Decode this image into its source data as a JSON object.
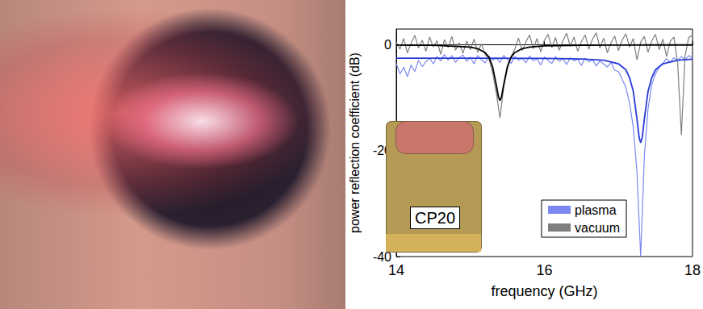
{
  "chart_data": {
    "type": "line",
    "xlabel": "frequency (GHz)",
    "ylabel": "power reflection coefficient (dB)",
    "xlim": [
      14,
      18
    ],
    "xticks": [
      14,
      16,
      18
    ],
    "ylim": [
      -40,
      3
    ],
    "yticks": [
      -40,
      -20,
      0
    ],
    "grid": false,
    "legend": "lower right",
    "annotations": [
      {
        "text": "CP20"
      }
    ],
    "series": [
      {
        "name": "plasma",
        "color": "#7b88f2",
        "marker": "none",
        "line_style": "solid",
        "x": [
          14.0,
          14.05,
          14.1,
          14.15,
          14.2,
          14.25,
          14.3,
          14.35,
          14.4,
          14.45,
          14.5,
          14.55,
          14.6,
          14.65,
          14.7,
          14.75,
          14.8,
          14.85,
          14.9,
          14.95,
          15.0,
          15.05,
          15.1,
          15.15,
          15.2,
          15.25,
          15.3,
          15.35,
          15.4,
          15.45,
          15.5,
          15.55,
          15.6,
          15.65,
          15.7,
          15.75,
          15.8,
          15.85,
          15.9,
          15.95,
          16.0,
          16.05,
          16.1,
          16.15,
          16.2,
          16.25,
          16.3,
          16.35,
          16.4,
          16.45,
          16.5,
          16.55,
          16.6,
          16.65,
          16.7,
          16.75,
          16.8,
          16.85,
          16.9,
          16.95,
          17.0,
          17.05,
          17.1,
          17.15,
          17.2,
          17.25,
          17.3,
          17.35,
          17.4,
          17.45,
          17.5,
          17.55,
          17.6,
          17.65,
          17.7,
          17.75,
          17.8,
          17.85,
          17.9,
          17.95,
          18.0
        ],
        "values": [
          -3.5,
          -5.5,
          -4.2,
          -6.0,
          -3.8,
          -5.0,
          -2.9,
          -4.1,
          -3.2,
          -2.5,
          -3.6,
          -2.2,
          -3.0,
          -1.8,
          -2.9,
          -2.0,
          -3.3,
          -2.4,
          -1.9,
          -3.1,
          -2.3,
          -3.6,
          -2.0,
          -2.8,
          -3.4,
          -2.1,
          -2.9,
          -2.4,
          -3.3,
          -2.0,
          -2.7,
          -3.5,
          -2.2,
          -2.9,
          -2.5,
          -3.4,
          -2.1,
          -3.0,
          -2.6,
          -3.8,
          -2.3,
          -2.9,
          -3.5,
          -2.2,
          -3.1,
          -2.6,
          -3.7,
          -2.4,
          -3.0,
          -2.7,
          -3.9,
          -2.5,
          -3.2,
          -2.8,
          -4.0,
          -3.0,
          -3.6,
          -4.2,
          -3.3,
          -4.8,
          -5.0,
          -6.5,
          -8.0,
          -11.0,
          -15.5,
          -24.0,
          -40.0,
          -21.0,
          -12.0,
          -7.5,
          -5.5,
          -4.2,
          -3.5,
          -2.6,
          -3.3,
          -2.4,
          -3.0,
          -2.2,
          -2.8,
          -2.0,
          -2.5
        ]
      },
      {
        "name": "vacuum",
        "color": "#7f7f7f",
        "marker": "none",
        "line_style": "solid",
        "x": [
          14.0,
          14.05,
          14.1,
          14.15,
          14.2,
          14.25,
          14.3,
          14.35,
          14.4,
          14.45,
          14.5,
          14.55,
          14.6,
          14.65,
          14.7,
          14.75,
          14.8,
          14.85,
          14.9,
          14.95,
          15.0,
          15.05,
          15.1,
          15.15,
          15.2,
          15.25,
          15.3,
          15.35,
          15.4,
          15.45,
          15.5,
          15.55,
          15.6,
          15.65,
          15.7,
          15.75,
          15.8,
          15.85,
          15.9,
          15.95,
          16.0,
          16.05,
          16.1,
          16.15,
          16.2,
          16.25,
          16.3,
          16.35,
          16.4,
          16.45,
          16.5,
          16.55,
          16.6,
          16.65,
          16.7,
          16.75,
          16.8,
          16.85,
          16.9,
          16.95,
          17.0,
          17.05,
          17.1,
          17.15,
          17.2,
          17.25,
          17.3,
          17.35,
          17.4,
          17.45,
          17.5,
          17.55,
          17.6,
          17.65,
          17.7,
          17.75,
          17.8,
          17.85,
          17.9,
          17.95,
          18.0
        ],
        "values": [
          0.5,
          -0.8,
          1.2,
          -1.5,
          0.3,
          1.8,
          -0.6,
          0.9,
          -1.2,
          1.5,
          -0.4,
          0.8,
          -1.8,
          1.0,
          -0.5,
          1.6,
          -1.0,
          0.4,
          -1.6,
          0.7,
          -0.9,
          1.1,
          -1.4,
          0.2,
          -1.9,
          -2.5,
          -5.2,
          -9.0,
          -13.8,
          -8.0,
          -4.5,
          -2.2,
          -0.8,
          1.3,
          -1.1,
          0.6,
          1.9,
          -0.7,
          1.2,
          -1.3,
          0.9,
          2.0,
          -0.5,
          1.4,
          -1.0,
          0.8,
          2.2,
          -0.3,
          1.5,
          -1.2,
          0.6,
          1.9,
          -0.8,
          1.1,
          2.3,
          -0.6,
          1.3,
          -1.5,
          0.4,
          1.7,
          -1.1,
          0.9,
          2.1,
          -0.4,
          1.2,
          -2.8,
          0.5,
          1.6,
          -1.4,
          0.8,
          2.0,
          -0.9,
          1.1,
          -2.2,
          0.7,
          1.5,
          -3.5,
          -17.0,
          -2.0,
          1.4,
          1.8
        ]
      },
      {
        "color": "#2a3bd6",
        "marker": "none",
        "line_style": "solid",
        "x": [
          14,
          15,
          16,
          16.5,
          16.8,
          17,
          17.1,
          17.15,
          17.2,
          17.25,
          17.28,
          17.3,
          17.32,
          17.35,
          17.4,
          17.45,
          17.5,
          17.6,
          17.8,
          18
        ],
        "values": [
          -2.51,
          -2.52,
          -2.56,
          -2.66,
          -2.9,
          -3.56,
          -4.7,
          -6.2,
          -8.74,
          -14.0,
          -17.56,
          -18.5,
          -17.56,
          -14.0,
          -8.74,
          -6.2,
          -4.7,
          -3.56,
          -2.9,
          -2.71
        ]
      },
      {
        "color": "#000000",
        "marker": "none",
        "line_style": "solid",
        "x": [
          14,
          14.5,
          15,
          15.1,
          15.2,
          15.25,
          15.3,
          15.35,
          15.38,
          15.4,
          15.42,
          15.45,
          15.5,
          15.55,
          15.6,
          15.7,
          15.8,
          16,
          16.5,
          17,
          17.5,
          18
        ],
        "values": [
          -0.03,
          -0.08,
          -0.42,
          -0.7,
          -1.45,
          -2.32,
          -4.1,
          -7.55,
          -9.88,
          -10.5,
          -9.88,
          -7.55,
          -4.1,
          -2.32,
          -1.45,
          -0.7,
          -0.4,
          -0.18,
          -0.05,
          -0.03,
          -0.015,
          -0.01
        ]
      }
    ]
  }
}
